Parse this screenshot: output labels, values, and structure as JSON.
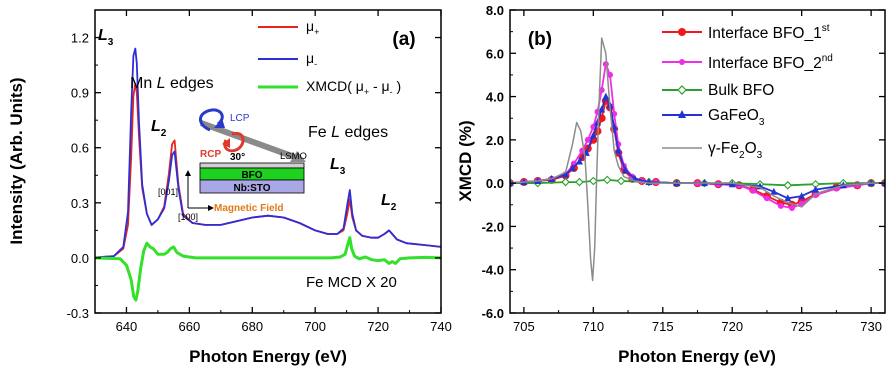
{
  "chart_data": [
    {
      "panel_label": "(a)",
      "type": "line",
      "xlabel": "Photon Energy (eV)",
      "ylabel": "Intensity (Arb. Units)",
      "xlim": [
        630,
        740
      ],
      "ylim": [
        -0.3,
        1.35
      ],
      "xticks": [
        640,
        660,
        680,
        700,
        720,
        740
      ],
      "yticks": [
        -0.3,
        0.0,
        0.3,
        0.6,
        0.9,
        1.2
      ],
      "ytick_labels": [
        "-0.3",
        "0.0",
        "0.3",
        "0.6",
        "0.9",
        "1.2"
      ],
      "legend_placement": "top-right",
      "series": [
        {
          "name": "μ+",
          "legend": [
            "μ",
            "+"
          ],
          "color": "#e8251c",
          "x": [
            630,
            636,
            639,
            640.5,
            641.5,
            642.2,
            642.8,
            643.3,
            644,
            645,
            646.5,
            648,
            650,
            652,
            653.5,
            654.5,
            655.3,
            656.5,
            658,
            661,
            665,
            670,
            675,
            680,
            685,
            690,
            695,
            700,
            704,
            707,
            709,
            710.2,
            711,
            711.8,
            713,
            715,
            718,
            720,
            722,
            723.5,
            724.5,
            726,
            729,
            735,
            740
          ],
          "y": [
            0.003,
            0.01,
            0.05,
            0.18,
            0.55,
            0.88,
            0.95,
            0.9,
            0.66,
            0.38,
            0.24,
            0.18,
            0.21,
            0.28,
            0.46,
            0.62,
            0.64,
            0.4,
            0.24,
            0.19,
            0.18,
            0.18,
            0.2,
            0.22,
            0.23,
            0.22,
            0.19,
            0.15,
            0.13,
            0.13,
            0.15,
            0.24,
            0.32,
            0.22,
            0.15,
            0.12,
            0.11,
            0.11,
            0.13,
            0.15,
            0.13,
            0.1,
            0.08,
            0.07,
            0.06
          ]
        },
        {
          "name": "μ-",
          "legend": [
            "μ",
            "-"
          ],
          "color": "#2e2ed6",
          "x": [
            630,
            636,
            639,
            640.5,
            641.5,
            642.2,
            642.8,
            643.3,
            644,
            645,
            646.5,
            648,
            650,
            652,
            653.5,
            654.5,
            655.3,
            656.5,
            658,
            661,
            665,
            670,
            675,
            680,
            685,
            690,
            695,
            700,
            704,
            707,
            709,
            710.2,
            711,
            711.8,
            713,
            715,
            718,
            720,
            722,
            723.5,
            724.5,
            726,
            729,
            735,
            740
          ],
          "y": [
            0.003,
            0.01,
            0.06,
            0.25,
            0.8,
            1.1,
            1.14,
            1.06,
            0.74,
            0.4,
            0.24,
            0.18,
            0.21,
            0.27,
            0.42,
            0.56,
            0.58,
            0.38,
            0.23,
            0.19,
            0.18,
            0.18,
            0.2,
            0.22,
            0.23,
            0.22,
            0.19,
            0.15,
            0.13,
            0.13,
            0.16,
            0.29,
            0.37,
            0.24,
            0.15,
            0.12,
            0.11,
            0.11,
            0.13,
            0.15,
            0.13,
            0.1,
            0.08,
            0.07,
            0.06
          ]
        },
        {
          "name": "XMCD( μ+ - μ- )",
          "legend": [
            "XMCD( μ",
            "+",
            " - μ",
            "-",
            " )"
          ],
          "color": "#33e02a",
          "x": [
            630,
            638,
            640,
            641.5,
            642.3,
            643,
            643.6,
            644.5,
            645.5,
            646.5,
            647.5,
            648.5,
            650,
            652,
            653,
            654,
            655,
            656,
            658,
            662,
            670,
            680,
            690,
            700,
            705,
            708,
            709.5,
            710.3,
            711,
            711.6,
            712.5,
            714,
            716,
            718,
            720,
            722,
            723.5,
            724.5,
            725.5,
            727,
            730,
            735,
            740
          ],
          "y": [
            0,
            -0.005,
            -0.04,
            -0.12,
            -0.21,
            -0.23,
            -0.18,
            -0.06,
            0.04,
            0.08,
            0.06,
            0.05,
            0.02,
            0.02,
            0.03,
            0.05,
            0.06,
            0.03,
            0.01,
            0,
            0,
            0,
            0,
            0,
            0,
            0.005,
            0.02,
            0.07,
            0.11,
            0.05,
            0.01,
            -0.005,
            0.005,
            -0.01,
            -0.015,
            -0.01,
            -0.03,
            -0.02,
            -0.03,
            -0.005,
            0,
            0.003,
            0
          ]
        }
      ],
      "annotations": {
        "peak_mn_l3": "L",
        "peak_mn_l3_sub": "3",
        "peak_mn_l2": "L",
        "peak_mn_l2_sub": "2",
        "peak_fe_l3": "L",
        "peak_fe_l3_sub": "3",
        "peak_fe_l2": "L",
        "peak_fe_l2_sub": "2",
        "mn_edges": [
          "Mn ",
          "L",
          " edges"
        ],
        "fe_edges": [
          "Fe ",
          "L",
          " edges"
        ],
        "fe_mcd": "Fe MCD X 20",
        "inset": {
          "lcp": "LCP",
          "rcp": "RCP",
          "angle": "30°",
          "lsmo": "LSMO",
          "bfo": "BFO",
          "nbsto": "Nb:STO",
          "dir_001": "[001]",
          "dir_100": "[100]",
          "field": "Magnetic Field"
        }
      }
    },
    {
      "panel_label": "(b)",
      "type": "line",
      "xlabel": "Photon Energy (eV)",
      "ylabel": "XMCD (%)",
      "xlim": [
        704,
        731
      ],
      "ylim": [
        -6.0,
        8.0
      ],
      "xticks": [
        705,
        710,
        715,
        720,
        725,
        730
      ],
      "yticks": [
        -6.0,
        -4.0,
        -2.0,
        0.0,
        2.0,
        4.0,
        6.0,
        8.0
      ],
      "ytick_labels": [
        "-6.0",
        "-4.0",
        "-2.0",
        "0.0",
        "2.0",
        "4.0",
        "6.0",
        "8.0"
      ],
      "legend_placement": "top-right",
      "series": [
        {
          "name": "Interface BFO_1st",
          "legend": [
            "Interface BFO_1",
            "st"
          ],
          "color": "#f2171c",
          "marker": "circle",
          "x": [
            704,
            705,
            706,
            707,
            708,
            708.6,
            709.2,
            709.6,
            710,
            710.3,
            710.6,
            710.9,
            711.2,
            711.5,
            711.8,
            712.2,
            712.8,
            713.5,
            714.5,
            716,
            717.5,
            719,
            720.5,
            721.5,
            722.5,
            723.5,
            724.3,
            725,
            726,
            727.5,
            729,
            730,
            731
          ],
          "y": [
            0,
            0.05,
            0.1,
            0.15,
            0.35,
            0.7,
            1.2,
            1.6,
            2.0,
            2.4,
            3.0,
            3.8,
            3.5,
            2.5,
            1.4,
            0.6,
            0.2,
            0.1,
            0.05,
            0,
            0,
            -0.05,
            -0.1,
            -0.3,
            -0.6,
            -0.9,
            -1.0,
            -0.85,
            -0.5,
            -0.2,
            -0.1,
            0,
            0
          ]
        },
        {
          "name": "Interface BFO_2nd",
          "legend": [
            "Interface BFO_2",
            "nd"
          ],
          "color": "#ee2fe6",
          "marker": "circle",
          "x": [
            704,
            705,
            706,
            707,
            708,
            708.6,
            709.2,
            709.6,
            710,
            710.3,
            710.6,
            710.9,
            711.2,
            711.5,
            711.8,
            712.2,
            712.8,
            713.5,
            714.5,
            716,
            717.5,
            719,
            720.5,
            721.5,
            722.5,
            723.5,
            724.3,
            725,
            726,
            727.5,
            729,
            730,
            731
          ],
          "y": [
            0,
            0.05,
            0.1,
            0.2,
            0.4,
            0.9,
            1.5,
            2.0,
            2.6,
            3.3,
            4.3,
            5.5,
            5.0,
            3.2,
            1.8,
            0.8,
            0.3,
            0.1,
            0.05,
            0,
            0,
            -0.05,
            -0.1,
            -0.35,
            -0.7,
            -1.05,
            -1.15,
            -0.95,
            -0.55,
            -0.25,
            -0.1,
            0,
            0
          ]
        },
        {
          "name": "Bulk BFO",
          "legend": [
            "Bulk BFO"
          ],
          "color": "#2ca02c",
          "marker": "diamond",
          "x": [
            704,
            706,
            708,
            709,
            710,
            711,
            712,
            714,
            716,
            718,
            720,
            722,
            724,
            726,
            728,
            730,
            731
          ],
          "y": [
            0,
            0,
            0.05,
            0.05,
            0.1,
            0.15,
            0.1,
            0.05,
            0,
            0,
            0,
            -0.05,
            -0.1,
            -0.05,
            0,
            0,
            0
          ]
        },
        {
          "name": "GaFeO3",
          "legend": [
            "GaFeO",
            "3"
          ],
          "color": "#2233d6",
          "marker": "triangle",
          "x": [
            704,
            705,
            706,
            707,
            708,
            708.5,
            709,
            709.5,
            710,
            710.3,
            710.6,
            710.9,
            711.2,
            711.5,
            711.8,
            712.3,
            713,
            714,
            716,
            718,
            720,
            722,
            723,
            724,
            725,
            726,
            728,
            730,
            731
          ],
          "y": [
            0,
            0.05,
            0.1,
            0.2,
            0.4,
            0.7,
            1.0,
            1.4,
            2.2,
            2.8,
            3.4,
            4.0,
            3.6,
            2.6,
            1.5,
            0.6,
            0.2,
            0.05,
            0,
            0,
            -0.05,
            -0.15,
            -0.4,
            -0.7,
            -0.6,
            -0.3,
            -0.1,
            0,
            0
          ]
        },
        {
          "name": "γ-Fe2O3",
          "legend": [
            "γ-Fe",
            "2",
            "O",
            "3"
          ],
          "color": "#8c8c8c",
          "marker": "none",
          "x": [
            704,
            706,
            707,
            708,
            708.5,
            708.8,
            709.1,
            709.4,
            709.6,
            709.8,
            709.95,
            710.1,
            710.25,
            710.4,
            710.6,
            710.9,
            711.2,
            711.5,
            711.8,
            712.2,
            713,
            714,
            716,
            718,
            720,
            722,
            723,
            724,
            725,
            726,
            728,
            730,
            731
          ],
          "y": [
            0,
            0.1,
            0.2,
            0.5,
            1.8,
            2.8,
            2.4,
            1.2,
            -1.0,
            -3.5,
            -4.5,
            -3.0,
            0.5,
            3.5,
            6.7,
            6.0,
            3.5,
            1.5,
            0.8,
            0.3,
            0.1,
            0,
            0,
            0,
            0,
            -0.2,
            -0.6,
            -0.9,
            -1.1,
            -0.5,
            -0.1,
            0,
            0
          ]
        }
      ]
    }
  ]
}
